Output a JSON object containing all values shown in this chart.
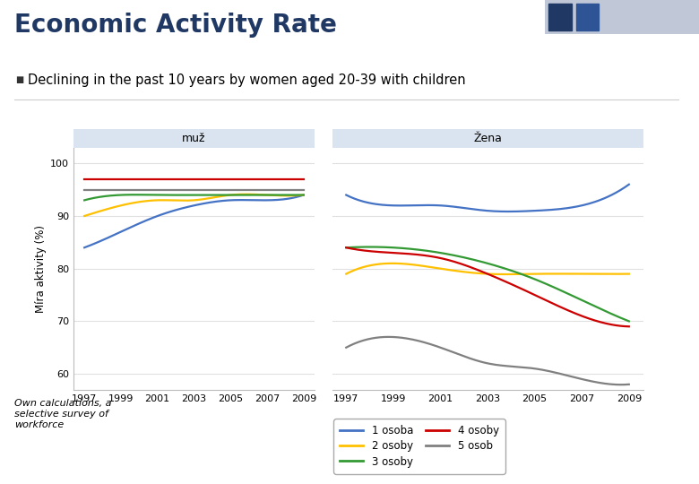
{
  "title": "Economic Activity Rate",
  "subtitle_bullet": "Declining in the past 10 years by women aged 20-39 with children",
  "panel_left_label": "muž",
  "panel_right_label": "Žena",
  "ylabel": "Míra aktivity (%)",
  "years": [
    1997,
    1999,
    2001,
    2003,
    2005,
    2007,
    2009
  ],
  "yticks": [
    60,
    70,
    80,
    90,
    100
  ],
  "background_color": "#ffffff",
  "panel_header_color": "#d9e4f0",
  "line_colors": {
    "1 osoba": "#4472c4",
    "2 osoby": "#ffc000",
    "3 osoby": "#339933",
    "4 osoby": "#cc0000",
    "5 osob": "#808080"
  },
  "muz_data": {
    "1 osoba": [
      84,
      87,
      90,
      92,
      93,
      93,
      94
    ],
    "2 osoby": [
      90,
      92,
      93,
      93,
      94,
      94,
      94
    ],
    "3 osoby": [
      93,
      94,
      94,
      94,
      94,
      94,
      94
    ],
    "4 osoby": [
      97,
      97,
      97,
      97,
      97,
      97,
      97
    ],
    "5 osob": [
      95,
      95,
      95,
      95,
      95,
      95,
      95
    ]
  },
  "zena_data": {
    "1 osoba": [
      94,
      92,
      92,
      91,
      91,
      92,
      96
    ],
    "2 osoby": [
      79,
      81,
      80,
      79,
      79,
      79,
      79
    ],
    "3 osoby": [
      84,
      84,
      83,
      81,
      78,
      74,
      70
    ],
    "4 osoby": [
      84,
      83,
      82,
      79,
      75,
      71,
      69
    ],
    "5 osob": [
      65,
      67,
      65,
      62,
      61,
      59,
      58
    ]
  },
  "footnote": "Own calculations, a\nselective survey of\nworkforce",
  "title_color": "#1f3864",
  "title_fontsize": 20,
  "subtitle_fontsize": 10.5,
  "legend_order": [
    "1 osoba",
    "2 osoby",
    "3 osoby",
    "4 osoby",
    "5 osob"
  ]
}
